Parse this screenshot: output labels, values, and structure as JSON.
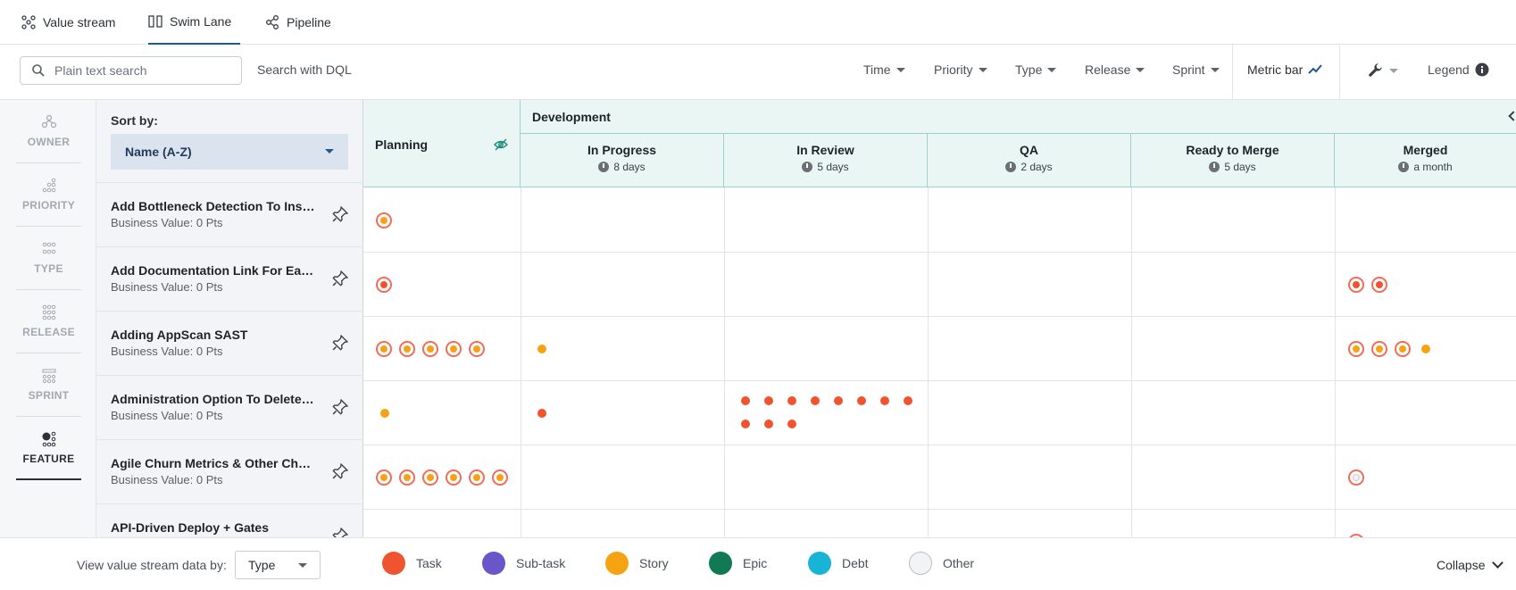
{
  "tabs": [
    {
      "label": "Value stream",
      "icon": "value-stream-icon"
    },
    {
      "label": "Swim Lane",
      "icon": "swim-lane-icon",
      "active": true
    },
    {
      "label": "Pipeline",
      "icon": "pipeline-icon"
    }
  ],
  "toolbar": {
    "search_placeholder": "Plain text search",
    "dql_label": "Search with DQL",
    "filters": [
      "Time",
      "Priority",
      "Type",
      "Release",
      "Sprint"
    ],
    "metric_bar": "Metric bar",
    "legend": "Legend"
  },
  "rail": [
    {
      "label": "OWNER",
      "icon": "owner-icon"
    },
    {
      "label": "PRIORITY",
      "icon": "priority-icon"
    },
    {
      "label": "TYPE",
      "icon": "type-icon"
    },
    {
      "label": "RELEASE",
      "icon": "release-icon"
    },
    {
      "label": "SPRINT",
      "icon": "sprint-icon"
    },
    {
      "label": "FEATURE",
      "icon": "feature-icon",
      "active": true
    }
  ],
  "sort": {
    "label": "Sort by:",
    "value": "Name (A-Z)"
  },
  "columns": {
    "planning": "Planning",
    "group": "Development",
    "stages": [
      {
        "name": "In Progress",
        "duration": "8 days"
      },
      {
        "name": "In Review",
        "duration": "5 days"
      },
      {
        "name": "QA",
        "duration": "2 days"
      },
      {
        "name": "Ready to Merge",
        "duration": "5 days"
      },
      {
        "name": "Merged",
        "duration": "a month"
      }
    ]
  },
  "rows": [
    {
      "title": "Add Bottleneck Detection To Insights Dashboard",
      "sub": "Business Value: 0 Pts"
    },
    {
      "title": "Add Documentation Link For Each Analytics View",
      "sub": "Business Value: 0 Pts"
    },
    {
      "title": "Adding AppScan SAST",
      "sub": "Business Value: 0 Pts"
    },
    {
      "title": "Administration Option To Delete Resources",
      "sub": "Business Value: 0 Pts"
    },
    {
      "title": "Agile Churn Metrics & Other Charts Expansion",
      "sub": "Business Value: 0 Pts"
    },
    {
      "title": "API-Driven Deploy + Gates",
      "sub": ""
    }
  ],
  "bottom": {
    "view_by_label": "View value stream data by:",
    "view_by_value": "Type",
    "legend": [
      {
        "label": "Task",
        "color": "#f0532f"
      },
      {
        "label": "Sub-task",
        "color": "#6a56c8"
      },
      {
        "label": "Story",
        "color": "#f5a313"
      },
      {
        "label": "Epic",
        "color": "#117a55"
      },
      {
        "label": "Debt",
        "color": "#1ab3d8"
      },
      {
        "label": "Other",
        "color": "#f1f3f5"
      }
    ],
    "collapse": "Collapse"
  }
}
